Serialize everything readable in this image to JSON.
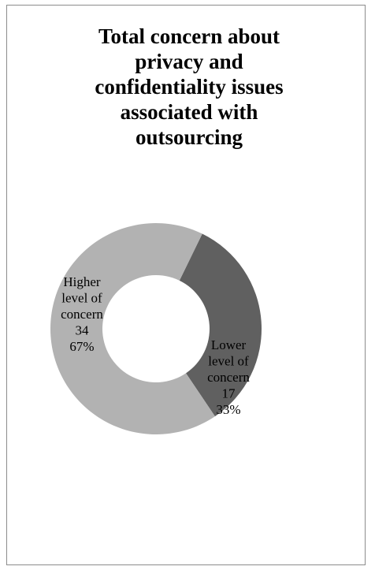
{
  "chart_data": {
    "type": "pie",
    "donut": true,
    "title": "Total concern about\nprivacy and\nconfidentiality issues\nassociated with\noutsourcing",
    "slices": [
      {
        "name": "Lower level of concern",
        "label_lines": [
          "Lower",
          "level of",
          "concern"
        ],
        "value": 17,
        "percent": "33%",
        "color": "#606060"
      },
      {
        "name": "Higher level of concern",
        "label_lines": [
          "Higher",
          "level of",
          "concern"
        ],
        "value": 34,
        "percent": "67%",
        "color": "#b2b2b2"
      }
    ],
    "legend": "none"
  }
}
